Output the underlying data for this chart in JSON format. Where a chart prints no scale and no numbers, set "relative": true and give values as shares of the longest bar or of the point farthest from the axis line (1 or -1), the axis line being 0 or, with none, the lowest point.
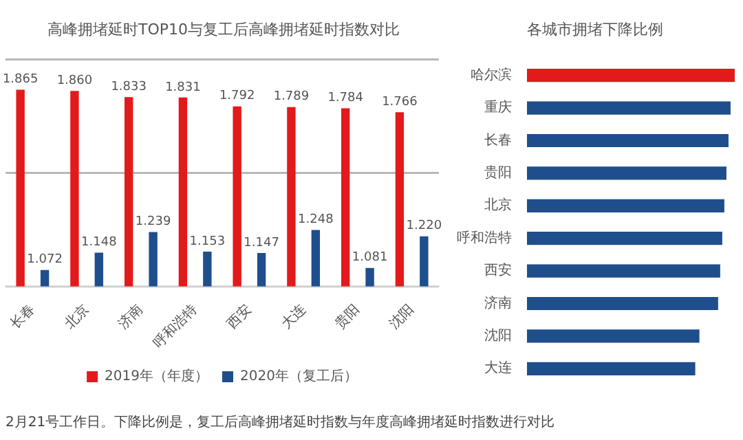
{
  "chart_data": [
    {
      "type": "bar",
      "title": "高峰拥堵延时TOP10与复工后高峰拥堵延时指数对比",
      "categories": [
        "长春",
        "北京",
        "济南",
        "呼和浩特",
        "西安",
        "大连",
        "贵阳",
        "沈阳"
      ],
      "series": [
        {
          "name": "2019年（年度）",
          "color": "#e31a1c",
          "values": [
            1.865,
            1.86,
            1.833,
            1.831,
            1.792,
            1.789,
            1.784,
            1.766
          ],
          "value_labels": [
            "1.865",
            "1.860",
            "1.833",
            "1.831",
            "1.792",
            "1.789",
            "1.784",
            "1.766"
          ]
        },
        {
          "name": "2020年（复工后）",
          "color": "#1f4e8c",
          "values": [
            1.072,
            1.148,
            1.239,
            1.153,
            1.147,
            1.248,
            1.081,
            1.22
          ],
          "value_labels": [
            "1.072",
            "1.148",
            "1.239",
            "1.153",
            "1.147",
            "1.248",
            "1.081",
            "1.220"
          ]
        }
      ],
      "ylim": [
        1,
        2
      ],
      "yticks": [
        {
          "value": 1,
          "label": null
        },
        {
          "value": 1.5,
          "label": null
        },
        {
          "value": 2,
          "label": null
        }
      ],
      "tick_labels": "x",
      "grid": "y",
      "legend": "bottom",
      "annotations": [
        "2月21号工作日。下降比例是，复工后高峰拥堵延时指数与年度高峰拥堵延时指数进行对比"
      ]
    },
    {
      "type": "bar",
      "orientation": "horizontal",
      "title": "各城市拥堵下降比例",
      "categories": [
        "哈尔滨",
        "重庆",
        "长春",
        "贵阳",
        "北京",
        "呼和浩特",
        "西安",
        "济南",
        "沈阳",
        "大连"
      ],
      "values": [
        1,
        0.98,
        0.97,
        0.96,
        0.95,
        0.94,
        0.93,
        0.92,
        0.83,
        0.81
      ],
      "colors": [
        "#e31a1c",
        "#1f4e8c",
        "#1f4e8c",
        "#1f4e8c",
        "#1f4e8c",
        "#1f4e8c",
        "#1f4e8c",
        "#1f4e8c",
        "#1f4e8c",
        "#1f4e8c"
      ],
      "relative": true
    }
  ]
}
